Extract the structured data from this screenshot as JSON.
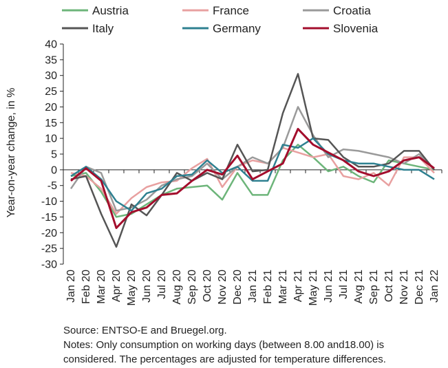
{
  "chart_data": {
    "type": "line",
    "title": "",
    "xlabel": "",
    "ylabel": "Year-on-year change, in %",
    "ylim": [
      -30,
      40
    ],
    "yticks": [
      40,
      35,
      30,
      25,
      20,
      15,
      10,
      5,
      0,
      -5,
      -10,
      -15,
      -20,
      -25,
      -30
    ],
    "grid": false,
    "legend_position": "top",
    "categories": [
      "Jan 20",
      "Feb 20",
      "Mar 20",
      "Apr 20",
      "May 20",
      "Jun 20",
      "Jul 20",
      "Aug 20",
      "Sep 20",
      "Oct 20",
      "Nov 20",
      "Dec 20",
      "Jan 21",
      "Feb 21",
      "Mar 21",
      "Apr 21",
      "May 21",
      "Jun 21",
      "Jul 21",
      "Avg 21",
      "Sep 21",
      "Oct 21",
      "Nov 21",
      "Dec 21",
      "Jan 22"
    ],
    "series": [
      {
        "name": "Austria",
        "color": "#6db57a",
        "values": [
          -2,
          -1,
          -7,
          -15,
          -14,
          -11,
          -8,
          -6,
          -5.5,
          -5,
          -9.5,
          -1,
          -8,
          -8,
          3,
          8,
          4,
          -0.5,
          1,
          -2,
          -4,
          3,
          2,
          1,
          0
        ]
      },
      {
        "name": "France",
        "color": "#e8a0a0",
        "values": [
          -1,
          -2,
          -6,
          -14,
          -9,
          -5.5,
          -4,
          -3.5,
          0.5,
          3.5,
          -5.5,
          1,
          3,
          2,
          7,
          5.5,
          4,
          5,
          -2,
          -3,
          -1,
          -5,
          4,
          4,
          -1
        ]
      },
      {
        "name": "Croatia",
        "color": "#9a9a9a",
        "values": [
          -6,
          1,
          -1,
          -13,
          -12,
          -9.5,
          -5,
          -3,
          -2,
          2,
          -3,
          1,
          4,
          2,
          7,
          20,
          11,
          4,
          6.5,
          6,
          5,
          4,
          2,
          5,
          0
        ]
      },
      {
        "name": "Italy",
        "color": "#555555",
        "values": [
          -3,
          -2,
          -14,
          -24.5,
          -11,
          -14.5,
          -8,
          -1,
          -3.5,
          -1,
          -3,
          8,
          -0.5,
          0,
          18,
          30.5,
          10,
          9.5,
          4,
          1,
          1,
          2,
          6,
          6,
          0
        ]
      },
      {
        "name": "Germany",
        "color": "#2e8090",
        "values": [
          -2,
          1,
          -3,
          -10,
          -13,
          -7.5,
          -6,
          -2,
          -1.5,
          3,
          -1,
          1,
          -3.5,
          -3.5,
          8,
          7,
          10,
          5,
          3,
          2,
          2,
          1,
          0,
          0,
          -3
        ]
      },
      {
        "name": "Slovenia",
        "color": "#a30d2c",
        "values": [
          -3.5,
          0.5,
          -3.5,
          -18.5,
          -13.5,
          -12,
          -8,
          -7.5,
          -3.5,
          0,
          -1.5,
          4.5,
          -3,
          -0.5,
          2,
          13,
          8,
          5.5,
          3,
          -0.5,
          -2,
          -0.5,
          3,
          4,
          0.5
        ]
      }
    ]
  },
  "notes": {
    "line1": "Source: ENTSO-E and Bruegel.org.",
    "line2": "Notes: Only consumption on working days (between 8.00 and18.00) is",
    "line3": "considered. The percentages are adjusted for temperature differences."
  }
}
